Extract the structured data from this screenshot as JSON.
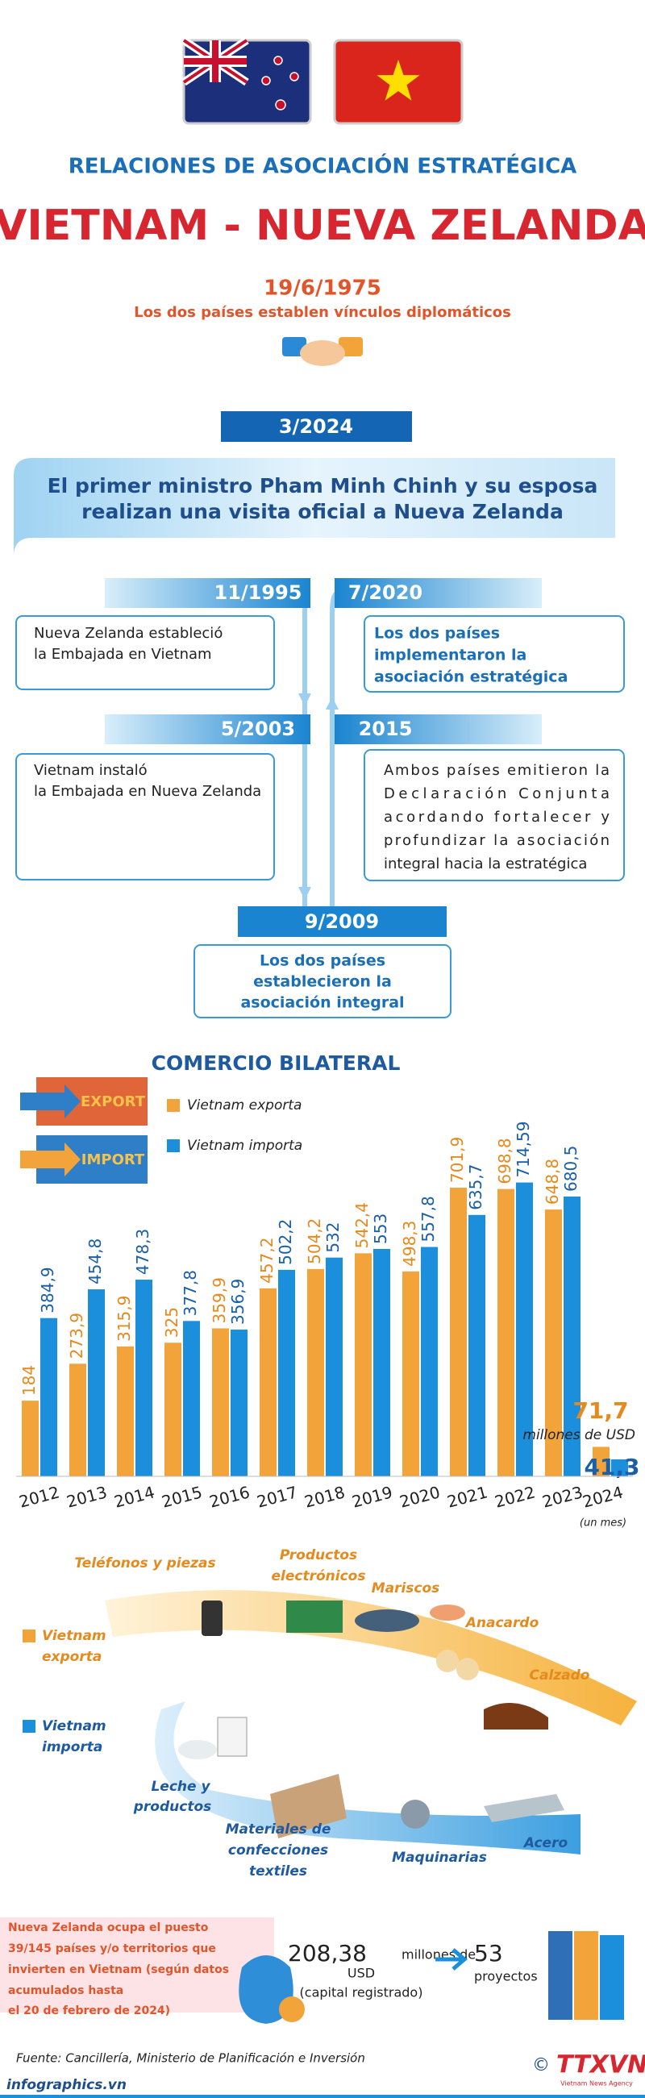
{
  "header": {
    "subtitle": "RELACIONES DE ASOCIACIÓN ESTRATÉGICA",
    "title": "VIETNAM - NUEVA ZELANDA"
  },
  "origin": {
    "date": "19/6/1975",
    "text": "Los dos países establen vínculos diplomáticos"
  },
  "visit": {
    "date": "3/2024",
    "lines": [
      "El primer ministro Pham Minh Chinh y su esposa",
      "realizan una visita oficial a Nueva Zelanda"
    ]
  },
  "timeline": [
    {
      "date": "11/1995",
      "lines": [
        "Nueva Zelanda estableció",
        "la Embajada en Vietnam"
      ]
    },
    {
      "date": "7/2020",
      "lines": [
        "Los dos países",
        "implementaron la",
        "asociación estratégica"
      ]
    },
    {
      "date": "5/2003",
      "lines": [
        "Vietnam instaló",
        "la Embajada en Nueva Zelanda"
      ]
    },
    {
      "date": "2015",
      "lines": [
        "Ambos países emitieron la",
        "Declaración Conjunta",
        "acordando fortalecer y",
        "profundizar la asociación",
        "integral hacia la estratégica"
      ]
    },
    {
      "date": "9/2009",
      "lines": [
        "Los dos países",
        "establecieron la",
        "asociación integral"
      ]
    }
  ],
  "trade_icon": {
    "export": "EXPORT",
    "import": "IMPORT"
  },
  "chart_data": {
    "type": "bar",
    "title": "COMERCIO BILATERAL",
    "categories": [
      "2012",
      "2013",
      "2014",
      "2015",
      "2016",
      "2017",
      "2018",
      "2019",
      "2020",
      "2021",
      "2022",
      "2023",
      "2024"
    ],
    "category_note": "(un mes)",
    "unit": "millones de USD",
    "series": [
      {
        "name": "Vietnam exporta",
        "color": "#f2a33a",
        "values": [
          184,
          273.9,
          315.9,
          325,
          359.9,
          457.2,
          504.2,
          542.4,
          498.3,
          701.9,
          698.8,
          648.8,
          71.7
        ],
        "value_labels": [
          "184",
          "273,9",
          "315,9",
          "325",
          "359,9",
          "457,2",
          "504,2",
          "542,4",
          "498,3",
          "701,9",
          "698,8",
          "648,8",
          "71,7"
        ]
      },
      {
        "name": "Vietnam importa",
        "color": "#1b8fdc",
        "values": [
          384.9,
          454.8,
          478.3,
          377.8,
          356.9,
          502.2,
          532,
          553,
          557.8,
          635.7,
          714.59,
          680.5,
          41.3
        ],
        "value_labels": [
          "384,9",
          "454,8",
          "478,3",
          "377,8",
          "356,9",
          "502,2",
          "532",
          "553",
          "557,8",
          "635,7",
          "714,59",
          "680,5",
          "41,3"
        ]
      }
    ]
  },
  "products": {
    "export_label": [
      "Vietnam",
      "exporta"
    ],
    "import_label": [
      "Vietnam",
      "importa"
    ],
    "exports": [
      {
        "lines": [
          "Teléfonos y piezas"
        ]
      },
      {
        "lines": [
          "Productos",
          "electrónicos"
        ]
      },
      {
        "lines": [
          "Mariscos"
        ]
      },
      {
        "lines": [
          "Anacardo"
        ]
      },
      {
        "lines": [
          "Calzado"
        ]
      }
    ],
    "imports": [
      {
        "lines": [
          "Leche y",
          "productos"
        ]
      },
      {
        "lines": [
          "Materiales de",
          "confecciones",
          "textiles"
        ]
      },
      {
        "lines": [
          "Maquinarias"
        ]
      },
      {
        "lines": [
          "Acero"
        ]
      }
    ]
  },
  "investment": {
    "lines": [
      "Nueva Zelanda ocupa el puesto",
      "39/145 países y/o territorios que",
      "invierten en Vietnam (según datos",
      "acumulados hasta",
      "el 20 de febrero de 2024)"
    ],
    "capital": "208,38",
    "capital_unit": [
      "millones de",
      "USD"
    ],
    "capital_note": "(capital registrado)",
    "projects": "53",
    "projects_unit": "proyectos"
  },
  "footer": {
    "source": "Fuente: Cancillería, Ministerio de Planificación e Inversión",
    "site": "infographics.vn",
    "logo": "TTXVN",
    "logo_sub": "Vietnam News Agency"
  }
}
